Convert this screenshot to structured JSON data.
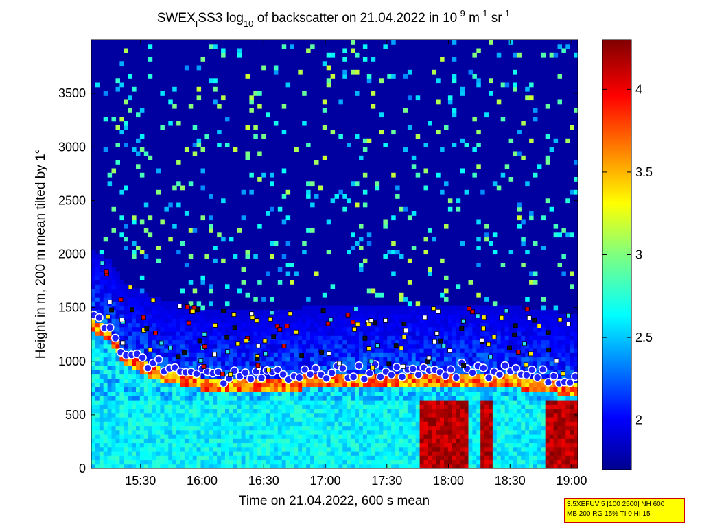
{
  "chart_data": {
    "type": "heatmap",
    "title_parts": {
      "prefix": "SWEX",
      "sub1": "I",
      "mid": "SS3 log",
      "sub2": "10",
      "suffix": " of backscatter on 21.04.2022 in 10",
      "sup1": "-9",
      "unit1": " m",
      "sup2": "-1",
      "unit2": " sr",
      "sup3": "-1"
    },
    "xlabel": "Time on 21.04.2022, 600 s mean",
    "ylabel": "Height in m, 200 m mean tilted by 1°",
    "x_ticks": [
      "15:30",
      "16:00",
      "16:30",
      "17:00",
      "17:30",
      "18:00",
      "18:30",
      "19:00"
    ],
    "x_tick_hours": [
      15.5,
      16.0,
      16.5,
      17.0,
      17.5,
      18.0,
      18.5,
      19.0
    ],
    "xlim_hours": [
      15.1,
      19.05
    ],
    "y_ticks": [
      0,
      500,
      1000,
      1500,
      2000,
      2500,
      3000,
      3500
    ],
    "ylim": [
      0,
      4000
    ],
    "colorbar": {
      "ticks": [
        2,
        2.5,
        3,
        3.5,
        4
      ],
      "tick_labels": [
        "2",
        "2.5",
        "3",
        "3.5",
        "4"
      ],
      "range": [
        1.7,
        4.3
      ],
      "colormap": "jet"
    },
    "layers": {
      "near_surface_aerosol": {
        "top_m": 650,
        "value": 2.6
      },
      "mixed_layer_top_m": [
        [
          15.1,
          1350
        ],
        [
          15.25,
          1250
        ],
        [
          15.35,
          1050
        ],
        [
          15.5,
          950
        ],
        [
          15.7,
          870
        ],
        [
          16.0,
          800
        ],
        [
          16.3,
          760
        ],
        [
          16.6,
          780
        ],
        [
          16.9,
          810
        ],
        [
          17.2,
          820
        ],
        [
          17.5,
          820
        ],
        [
          17.8,
          830
        ],
        [
          18.0,
          840
        ],
        [
          18.3,
          830
        ],
        [
          18.6,
          800
        ],
        [
          18.9,
          760
        ],
        [
          19.05,
          720
        ]
      ],
      "strong_echo_periods": [
        [
          17.75,
          18.15
        ],
        [
          18.25,
          18.35
        ],
        [
          18.8,
          19.05
        ]
      ]
    },
    "markers": {
      "blue_circles_white_edge": "boundary layer height estimates",
      "squares": [
        "white",
        "yellow",
        "red",
        "cyan",
        "black"
      ]
    }
  },
  "info_box": {
    "line1": "3.5XEFUV 5 [100 2500] NH 600",
    "line2": "MB 200 RG 15% TI 0 HI 15"
  }
}
